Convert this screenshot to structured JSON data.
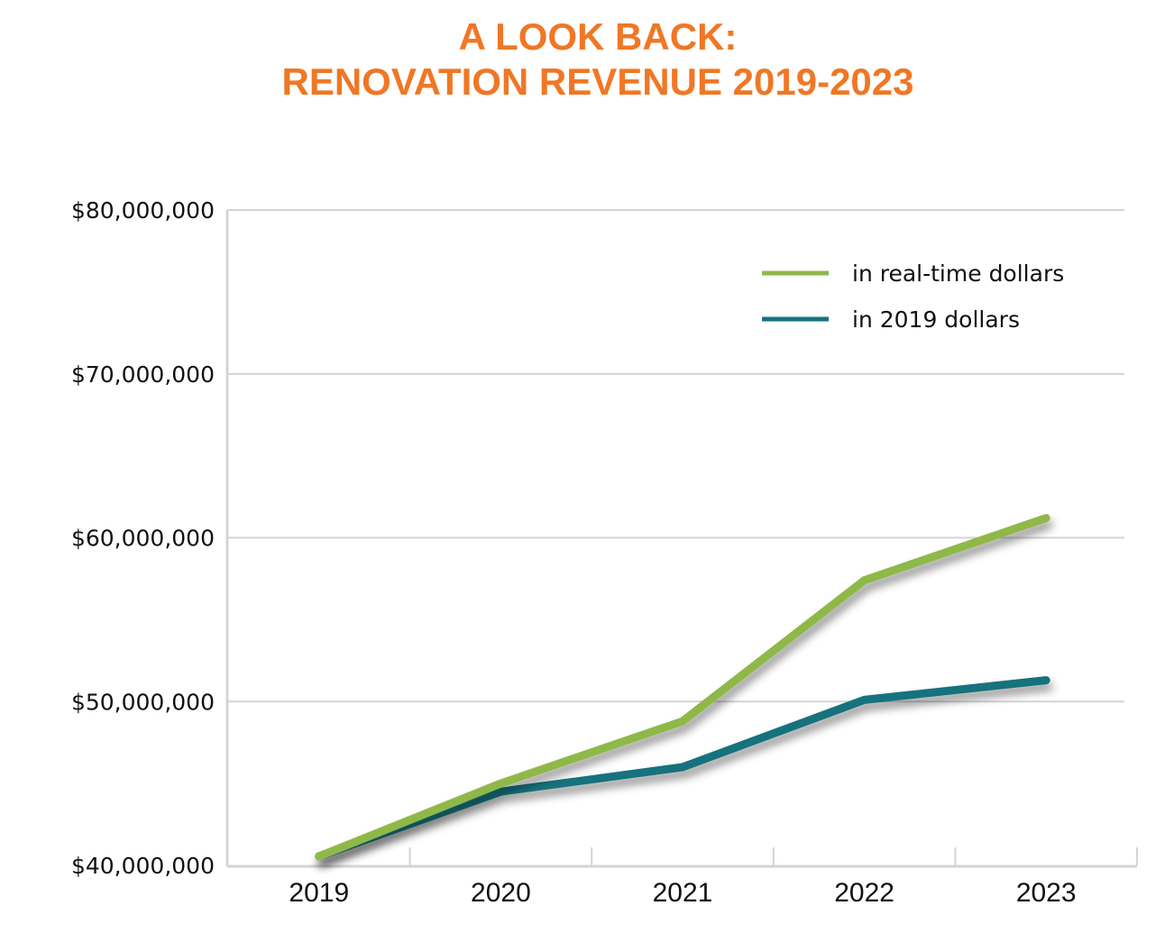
{
  "chart_data": {
    "type": "line",
    "title": "A LOOK BACK: RENOVATION REVENUE 2019-2023",
    "title_lines": [
      "A LOOK BACK:",
      "RENOVATION REVENUE 2019-2023"
    ],
    "xlabel": "",
    "ylabel": "",
    "categories": [
      "2019",
      "2020",
      "2021",
      "2022",
      "2023"
    ],
    "y_ticks": [
      40000000,
      50000000,
      60000000,
      70000000,
      80000000
    ],
    "y_tick_labels": [
      "$40,000,000",
      "$50,000,000",
      "$60,000,000",
      "$70,000,000",
      "$80,000,000"
    ],
    "ylim": [
      40000000,
      80000000
    ],
    "grid": true,
    "legend_position": "top-right",
    "series": [
      {
        "name": "in real-time dollars",
        "color": "#8fb84a",
        "values": [
          40550000,
          45000000,
          48800000,
          57400000,
          61200000
        ]
      },
      {
        "name": "in 2019 dollars",
        "color": "#17727c",
        "values": [
          40550000,
          44500000,
          46000000,
          50100000,
          51300000
        ]
      }
    ]
  },
  "colors": {
    "title": "#f07725",
    "grid": "#d4d4d4"
  }
}
